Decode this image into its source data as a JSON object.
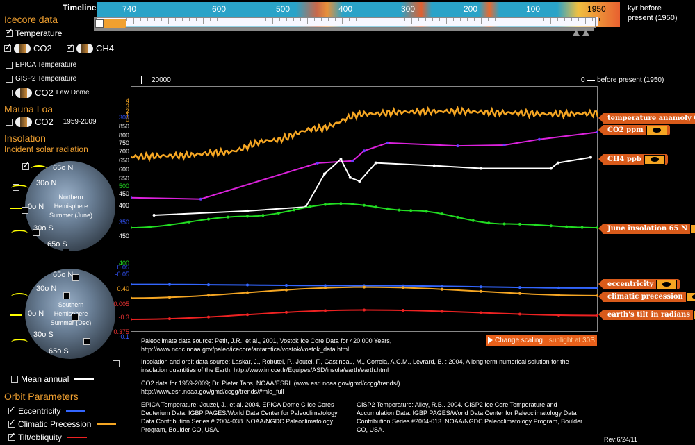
{
  "timeline": {
    "label": "Timeline:",
    "ticks": [
      "740",
      "600",
      "500",
      "400",
      "300",
      "200",
      "100",
      "1950"
    ],
    "unit_line1": "kyr before",
    "unit_line2": "present (1950)"
  },
  "sidebar": {
    "icecore_heading": "Icecore data",
    "temperature": "Temperature",
    "co2": "CO2",
    "ch4": "CH4",
    "epica": "EPICA Temperature",
    "gisp2": "GISP2 Temperature",
    "co2_law_dome": "CO2",
    "law_dome": "Law Dome",
    "mauna_loa_heading": "Mauna Loa",
    "mauna_co2": "CO2",
    "mauna_years": "1959-2009",
    "insolation_heading": "Insolation",
    "incident_solar": "Incident solar radiation",
    "mean_annual": "Mean annual",
    "orbit_heading": "Orbit Parameters",
    "eccentricity": "Eccentricity",
    "climatic_precession": "Climatic Precession",
    "tilt": "Tilt/obliquity"
  },
  "globes": {
    "north_label": "Northern Hemisphere Summer (June)",
    "south_label": "Southern Hemisphere Summer (Dec)",
    "north_lats": [
      "65o N",
      "30o N",
      "0o N",
      "30o S",
      "65o S"
    ],
    "south_lats": [
      "65o N",
      "30o N",
      "0o N",
      "30o S",
      "65o S"
    ]
  },
  "plot": {
    "left_label": "20000",
    "right_label": "0",
    "right_unit": "before present (1950)",
    "y_ticks_left": [
      {
        "text": "4",
        "color": "#f5a623"
      },
      {
        "text": "3",
        "color": "#f5a623"
      },
      {
        "text": "2",
        "color": "#f5a623"
      },
      {
        "text": "1",
        "color": "#f5a623"
      },
      {
        "text": "0",
        "color": "#f5a623"
      },
      {
        "text": "300",
        "color": "#3355ff"
      },
      {
        "text": "850",
        "color": "#fff"
      },
      {
        "text": "800",
        "color": "#fff"
      },
      {
        "text": "750",
        "color": "#fff"
      },
      {
        "text": "700",
        "color": "#fff"
      },
      {
        "text": "650",
        "color": "#fff"
      },
      {
        "text": "600",
        "color": "#fff"
      },
      {
        "text": "550",
        "color": "#fff"
      },
      {
        "text": "500",
        "color": "#22dd22"
      },
      {
        "text": "450",
        "color": "#fff"
      },
      {
        "text": "400",
        "color": "#fff"
      },
      {
        "text": "350",
        "color": "#3355ff"
      },
      {
        "text": "450",
        "color": "#fff"
      },
      {
        "text": "400",
        "color": "#22dd22"
      },
      {
        "text": "0.05",
        "color": "#3355ff"
      },
      {
        "text": "-0.05",
        "color": "#3355ff"
      },
      {
        "text": "0.40",
        "color": "#f5a623"
      },
      {
        "text": "0.005",
        "color": "#ee3333"
      },
      {
        "text": "-0.3",
        "color": "#ee3333"
      },
      {
        "text": "0.375",
        "color": "#ee3333"
      },
      {
        "text": "-0.1",
        "color": "#3355ff"
      }
    ],
    "tags": {
      "temperature": "temperature anamoly C",
      "co2": "CO2 ppm",
      "ch4": "CH4 ppb",
      "june_insolation": "June insolation 65 N",
      "eccentricity": "eccentricity",
      "precession": "climatic precession",
      "tilt": "earth's tilt in radians"
    }
  },
  "chart_data": {
    "type": "line",
    "title": "",
    "xlabel": "before present (1950)",
    "xlim": [
      20000,
      0
    ],
    "series": [
      {
        "name": "temperature anamoly C",
        "color": "#f5a623",
        "x": [
          20000,
          18000,
          16000,
          14000,
          12000,
          10000,
          8000,
          6000,
          4000,
          2000,
          0
        ],
        "values": [
          -8.2,
          -8.0,
          -7.4,
          -5.2,
          -3.0,
          -0.3,
          0.1,
          0.2,
          -0.1,
          -0.3,
          -0.2
        ]
      },
      {
        "name": "CO2 ppm",
        "color": "#dd22dd",
        "x": [
          20000,
          17000,
          12000,
          10500,
          10000,
          9000,
          6000,
          4000,
          2500,
          0
        ],
        "values": [
          189,
          187,
          237,
          240,
          254,
          265,
          261,
          262,
          270,
          280
        ]
      },
      {
        "name": "CH4 ppb",
        "color": "#ffffff",
        "x": [
          19000,
          15000,
          12500,
          11700,
          11000,
          10600,
          10200,
          9500,
          7000,
          5000,
          2000,
          1700,
          300
        ],
        "values": [
          375,
          398,
          420,
          600,
          680,
          580,
          560,
          660,
          645,
          630,
          630,
          660,
          690
        ]
      },
      {
        "name": "June insolation 65 N",
        "color": "#22dd22",
        "x": [
          20000,
          15000,
          11000,
          8000,
          4000,
          0
        ],
        "values": [
          460,
          490,
          523,
          505,
          470,
          460
        ]
      },
      {
        "name": "eccentricity",
        "color": "#3366ff",
        "x": [
          20000,
          10000,
          0
        ],
        "values": [
          0.0195,
          0.0185,
          0.0167
        ]
      },
      {
        "name": "climatic precession",
        "color": "#f5a623",
        "x": [
          20000,
          10000,
          0
        ],
        "values": [
          -0.018,
          0.018,
          -0.01
        ]
      },
      {
        "name": "earth's tilt in radians",
        "color": "#ee2222",
        "x": [
          20000,
          10000,
          0
        ],
        "values": [
          0.398,
          0.425,
          0.409
        ]
      }
    ]
  },
  "controls": {
    "change_scaling": "Change scaling",
    "sunlight": "sunlight at 30S;"
  },
  "sources": {
    "paleoclimate": "Paleoclimate data source: Petit, J.R., et al., 2001, Vostok Ice Core Data for 420,000 Years, http://www.ncdc.noaa.gov/paleo/icecore/antarctica/vostok/vostok_data.html",
    "insolation": "Insolation and orbit data source: Laskar, J., Robutel, P., Joutel, F., Gastineau, M., Correia, A.C.M., Levrard, B. : 2004, A long term numerical solution for the insolation quantities of the Earth. http://www.imcce.fr/Equipes/ASD/insola/earth/earth.html",
    "co2": "CO2 data for 1959-2009; Dr. Pieter Tans, NOAA/ESRL (www.esrl.noaa.gov/gmd/ccgg/trends/) http://www.esrl.noaa.gov/gmd/ccgg/trends/#mlo_full",
    "epica": "EPICA Temperature: Jouzel, J., et al. 2004. EPICA Dome C Ice Cores Deuterium Data. IGBP PAGES/World Data Center for Paleoclimatology Data Contribution Series # 2004-038. NOAA/NGDC Paleoclimatology Program, Boulder CO, USA.",
    "gisp2": "GISP2 Temperature: Alley, R.B.. 2004. GISP2 Ice Core Temperature and Accumulation Data. IGBP PAGES/World Data Center for Paleoclimatology Data Contribution Series #2004-013. NOAA/NGDC Paleoclimatology Program, Boulder CO, USA.",
    "rev": "Rev:6/24/11"
  }
}
